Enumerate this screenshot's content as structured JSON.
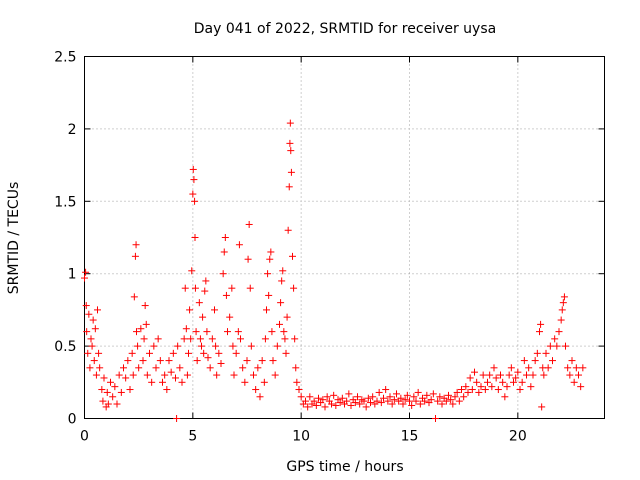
{
  "chart_data": {
    "type": "scatter",
    "title": "Day 041 of 2022, SRMTID for receiver uysa",
    "xlabel": "GPS time / hours",
    "ylabel": "SRMTID / TECUs",
    "xlim": [
      0,
      24
    ],
    "ylim": [
      0,
      2.5
    ],
    "xticks": [
      0,
      5,
      10,
      15,
      20
    ],
    "xtick_labels": [
      "0",
      "5",
      "10",
      "15",
      "20"
    ],
    "yticks": [
      0,
      0.5,
      1,
      1.5,
      2,
      2.5
    ],
    "ytick_labels": [
      "0",
      "0.5",
      "1",
      "1.5",
      "2",
      "2.5"
    ],
    "grid": true,
    "marker": "+",
    "color": "#ff0000",
    "series": [
      {
        "name": "SRMTID",
        "points": [
          [
            0.0,
            0.97
          ],
          [
            0.05,
            1.01
          ],
          [
            0.08,
            0.78
          ],
          [
            0.1,
            0.6
          ],
          [
            0.15,
            0.45
          ],
          [
            0.2,
            0.72
          ],
          [
            0.25,
            0.35
          ],
          [
            0.3,
            0.55
          ],
          [
            0.35,
            0.5
          ],
          [
            0.4,
            0.68
          ],
          [
            0.45,
            0.4
          ],
          [
            0.5,
            0.62
          ],
          [
            0.55,
            0.3
          ],
          [
            0.6,
            0.75
          ],
          [
            0.65,
            0.45
          ],
          [
            0.7,
            0.35
          ],
          [
            0.8,
            0.2
          ],
          [
            0.85,
            0.12
          ],
          [
            0.9,
            0.28
          ],
          [
            1.0,
            0.08
          ],
          [
            1.05,
            0.18
          ],
          [
            1.1,
            0.1
          ],
          [
            1.2,
            0.25
          ],
          [
            1.3,
            0.15
          ],
          [
            1.4,
            0.22
          ],
          [
            1.5,
            0.1
          ],
          [
            1.6,
            0.3
          ],
          [
            1.7,
            0.18
          ],
          [
            1.8,
            0.35
          ],
          [
            1.9,
            0.28
          ],
          [
            2.0,
            0.4
          ],
          [
            2.1,
            0.2
          ],
          [
            2.2,
            0.45
          ],
          [
            2.25,
            0.3
          ],
          [
            2.3,
            0.84
          ],
          [
            2.35,
            1.12
          ],
          [
            2.38,
            1.2
          ],
          [
            2.4,
            0.6
          ],
          [
            2.45,
            0.5
          ],
          [
            2.5,
            0.35
          ],
          [
            2.6,
            0.62
          ],
          [
            2.7,
            0.4
          ],
          [
            2.75,
            0.55
          ],
          [
            2.8,
            0.78
          ],
          [
            2.85,
            0.65
          ],
          [
            2.9,
            0.3
          ],
          [
            3.0,
            0.45
          ],
          [
            3.1,
            0.25
          ],
          [
            3.2,
            0.5
          ],
          [
            3.3,
            0.35
          ],
          [
            3.4,
            0.55
          ],
          [
            3.5,
            0.4
          ],
          [
            3.6,
            0.25
          ],
          [
            3.7,
            0.3
          ],
          [
            3.8,
            0.2
          ],
          [
            3.9,
            0.4
          ],
          [
            4.0,
            0.32
          ],
          [
            4.1,
            0.45
          ],
          [
            4.2,
            0.28
          ],
          [
            4.25,
            0.0
          ],
          [
            4.3,
            0.5
          ],
          [
            4.4,
            0.35
          ],
          [
            4.5,
            0.25
          ],
          [
            4.6,
            0.55
          ],
          [
            4.65,
            0.9
          ],
          [
            4.7,
            0.62
          ],
          [
            4.75,
            0.3
          ],
          [
            4.8,
            0.45
          ],
          [
            4.85,
            0.75
          ],
          [
            4.9,
            0.55
          ],
          [
            4.95,
            1.02
          ],
          [
            5.0,
            1.55
          ],
          [
            5.02,
            1.72
          ],
          [
            5.05,
            1.65
          ],
          [
            5.08,
            1.5
          ],
          [
            5.1,
            1.25
          ],
          [
            5.12,
            0.9
          ],
          [
            5.15,
            0.6
          ],
          [
            5.2,
            0.4
          ],
          [
            5.3,
            0.8
          ],
          [
            5.35,
            0.55
          ],
          [
            5.4,
            0.5
          ],
          [
            5.45,
            0.7
          ],
          [
            5.5,
            0.45
          ],
          [
            5.55,
            0.88
          ],
          [
            5.6,
            0.95
          ],
          [
            5.65,
            0.6
          ],
          [
            5.7,
            0.42
          ],
          [
            5.8,
            0.35
          ],
          [
            5.9,
            0.55
          ],
          [
            6.0,
            0.75
          ],
          [
            6.05,
            0.5
          ],
          [
            6.1,
            0.3
          ],
          [
            6.2,
            0.45
          ],
          [
            6.3,
            0.38
          ],
          [
            6.4,
            1.0
          ],
          [
            6.45,
            1.15
          ],
          [
            6.5,
            1.25
          ],
          [
            6.55,
            0.85
          ],
          [
            6.6,
            0.6
          ],
          [
            6.7,
            0.7
          ],
          [
            6.8,
            0.9
          ],
          [
            6.85,
            0.5
          ],
          [
            6.9,
            0.3
          ],
          [
            7.0,
            0.45
          ],
          [
            7.1,
            0.6
          ],
          [
            7.15,
            1.2
          ],
          [
            7.2,
            0.55
          ],
          [
            7.3,
            0.35
          ],
          [
            7.4,
            0.25
          ],
          [
            7.5,
            0.4
          ],
          [
            7.55,
            1.1
          ],
          [
            7.6,
            1.34
          ],
          [
            7.65,
            0.9
          ],
          [
            7.7,
            0.5
          ],
          [
            7.8,
            0.3
          ],
          [
            7.9,
            0.2
          ],
          [
            8.0,
            0.35
          ],
          [
            8.1,
            0.15
          ],
          [
            8.2,
            0.4
          ],
          [
            8.3,
            0.25
          ],
          [
            8.35,
            0.55
          ],
          [
            8.4,
            0.75
          ],
          [
            8.45,
            1.0
          ],
          [
            8.5,
            0.85
          ],
          [
            8.55,
            1.1
          ],
          [
            8.6,
            1.15
          ],
          [
            8.65,
            0.6
          ],
          [
            8.7,
            0.4
          ],
          [
            8.8,
            0.3
          ],
          [
            8.9,
            0.5
          ],
          [
            9.0,
            0.65
          ],
          [
            9.05,
            0.8
          ],
          [
            9.1,
            0.95
          ],
          [
            9.15,
            1.02
          ],
          [
            9.2,
            0.6
          ],
          [
            9.25,
            0.55
          ],
          [
            9.3,
            0.45
          ],
          [
            9.35,
            0.7
          ],
          [
            9.4,
            1.3
          ],
          [
            9.45,
            1.6
          ],
          [
            9.48,
            1.9
          ],
          [
            9.5,
            2.04
          ],
          [
            9.52,
            1.85
          ],
          [
            9.55,
            1.7
          ],
          [
            9.6,
            1.12
          ],
          [
            9.65,
            0.9
          ],
          [
            9.7,
            0.55
          ],
          [
            9.75,
            0.35
          ],
          [
            9.8,
            0.25
          ],
          [
            9.9,
            0.2
          ],
          [
            10.0,
            0.15
          ],
          [
            10.1,
            0.1
          ],
          [
            10.2,
            0.12
          ],
          [
            10.3,
            0.08
          ],
          [
            10.4,
            0.15
          ],
          [
            10.5,
            0.1
          ],
          [
            10.6,
            0.12
          ],
          [
            10.7,
            0.09
          ],
          [
            10.8,
            0.14
          ],
          [
            10.9,
            0.11
          ],
          [
            11.0,
            0.13
          ],
          [
            11.1,
            0.08
          ],
          [
            11.2,
            0.15
          ],
          [
            11.3,
            0.12
          ],
          [
            11.4,
            0.1
          ],
          [
            11.5,
            0.16
          ],
          [
            11.6,
            0.09
          ],
          [
            11.7,
            0.13
          ],
          [
            11.8,
            0.11
          ],
          [
            11.9,
            0.14
          ],
          [
            12.0,
            0.1
          ],
          [
            12.1,
            0.12
          ],
          [
            12.2,
            0.17
          ],
          [
            12.3,
            0.09
          ],
          [
            12.4,
            0.13
          ],
          [
            12.5,
            0.11
          ],
          [
            12.6,
            0.15
          ],
          [
            12.7,
            0.1
          ],
          [
            12.8,
            0.13
          ],
          [
            12.9,
            0.12
          ],
          [
            13.0,
            0.08
          ],
          [
            13.1,
            0.14
          ],
          [
            13.2,
            0.11
          ],
          [
            13.3,
            0.15
          ],
          [
            13.4,
            0.1
          ],
          [
            13.5,
            0.12
          ],
          [
            13.6,
            0.18
          ],
          [
            13.7,
            0.11
          ],
          [
            13.8,
            0.14
          ],
          [
            13.9,
            0.2
          ],
          [
            14.0,
            0.12
          ],
          [
            14.1,
            0.15
          ],
          [
            14.2,
            0.1
          ],
          [
            14.3,
            0.13
          ],
          [
            14.4,
            0.17
          ],
          [
            14.5,
            0.12
          ],
          [
            14.6,
            0.14
          ],
          [
            14.7,
            0.1
          ],
          [
            14.8,
            0.13
          ],
          [
            14.9,
            0.16
          ],
          [
            15.0,
            0.12
          ],
          [
            15.1,
            0.09
          ],
          [
            15.2,
            0.15
          ],
          [
            15.3,
            0.12
          ],
          [
            15.4,
            0.18
          ],
          [
            15.5,
            0.1
          ],
          [
            15.6,
            0.14
          ],
          [
            15.7,
            0.12
          ],
          [
            15.8,
            0.16
          ],
          [
            15.9,
            0.11
          ],
          [
            16.0,
            0.13
          ],
          [
            16.1,
            0.17
          ],
          [
            16.2,
            0.0
          ],
          [
            16.3,
            0.12
          ],
          [
            16.4,
            0.15
          ],
          [
            16.5,
            0.1
          ],
          [
            16.6,
            0.14
          ],
          [
            16.7,
            0.12
          ],
          [
            16.8,
            0.16
          ],
          [
            16.9,
            0.13
          ],
          [
            17.0,
            0.1
          ],
          [
            17.1,
            0.15
          ],
          [
            17.2,
            0.18
          ],
          [
            17.3,
            0.12
          ],
          [
            17.4,
            0.2
          ],
          [
            17.5,
            0.15
          ],
          [
            17.6,
            0.22
          ],
          [
            17.7,
            0.18
          ],
          [
            17.8,
            0.28
          ],
          [
            17.9,
            0.2
          ],
          [
            18.0,
            0.32
          ],
          [
            18.1,
            0.25
          ],
          [
            18.2,
            0.18
          ],
          [
            18.3,
            0.22
          ],
          [
            18.4,
            0.3
          ],
          [
            18.5,
            0.2
          ],
          [
            18.6,
            0.25
          ],
          [
            18.7,
            0.3
          ],
          [
            18.8,
            0.22
          ],
          [
            18.9,
            0.35
          ],
          [
            19.0,
            0.28
          ],
          [
            19.1,
            0.2
          ],
          [
            19.2,
            0.3
          ],
          [
            19.3,
            0.25
          ],
          [
            19.4,
            0.15
          ],
          [
            19.5,
            0.22
          ],
          [
            19.6,
            0.3
          ],
          [
            19.7,
            0.35
          ],
          [
            19.8,
            0.25
          ],
          [
            19.9,
            0.28
          ],
          [
            20.0,
            0.32
          ],
          [
            20.1,
            0.2
          ],
          [
            20.2,
            0.25
          ],
          [
            20.3,
            0.4
          ],
          [
            20.4,
            0.3
          ],
          [
            20.5,
            0.35
          ],
          [
            20.6,
            0.22
          ],
          [
            20.7,
            0.3
          ],
          [
            20.8,
            0.4
          ],
          [
            20.9,
            0.45
          ],
          [
            21.0,
            0.6
          ],
          [
            21.05,
            0.65
          ],
          [
            21.1,
            0.08
          ],
          [
            21.15,
            0.35
          ],
          [
            21.2,
            0.3
          ],
          [
            21.3,
            0.45
          ],
          [
            21.4,
            0.35
          ],
          [
            21.5,
            0.5
          ],
          [
            21.6,
            0.4
          ],
          [
            21.7,
            0.55
          ],
          [
            21.8,
            0.5
          ],
          [
            21.9,
            0.6
          ],
          [
            22.0,
            0.68
          ],
          [
            22.05,
            0.75
          ],
          [
            22.1,
            0.8
          ],
          [
            22.15,
            0.84
          ],
          [
            22.2,
            0.5
          ],
          [
            22.3,
            0.35
          ],
          [
            22.4,
            0.3
          ],
          [
            22.5,
            0.4
          ],
          [
            22.6,
            0.25
          ],
          [
            22.7,
            0.35
          ],
          [
            22.8,
            0.3
          ],
          [
            22.9,
            0.22
          ],
          [
            23.0,
            0.35
          ]
        ]
      }
    ]
  }
}
